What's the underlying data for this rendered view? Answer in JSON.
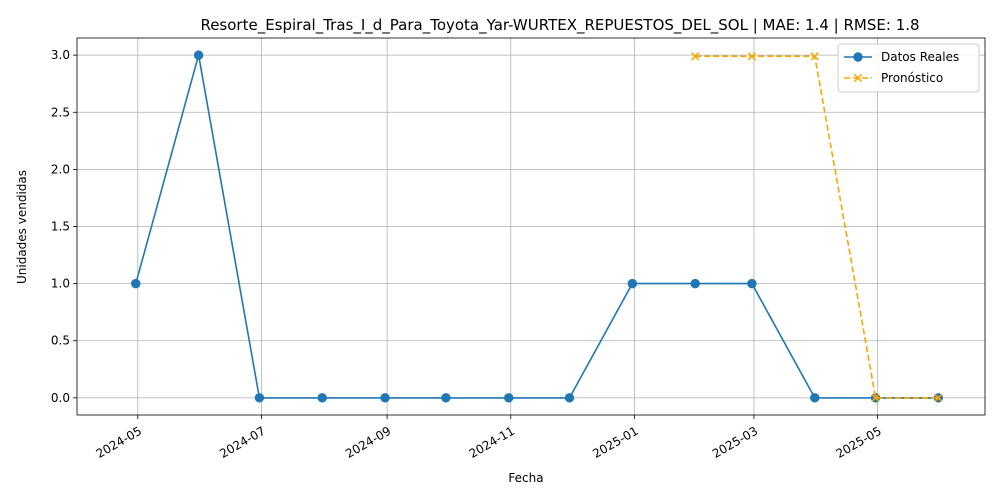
{
  "chart_data": {
    "type": "line",
    "title": "Resorte_Espiral_Tras_I_d_Para_Toyota_Yar-WURTEX_REPUESTOS_DEL_SOL | MAE: 1.4 | RMSE: 1.8",
    "xlabel": "Fecha",
    "ylabel": "Unidades vendidas",
    "xlim": [
      "2024-04-01",
      "2025-06-23"
    ],
    "ylim": [
      -0.15,
      3.15
    ],
    "x_ticks": [
      "2024-05",
      "2024-07",
      "2024-09",
      "2024-11",
      "2025-01",
      "2025-03",
      "2025-05"
    ],
    "y_ticks": [
      "0.0",
      "0.5",
      "1.0",
      "1.5",
      "2.0",
      "2.5",
      "3.0"
    ],
    "grid": true,
    "legend_position": "top-right",
    "series": [
      {
        "name": "Datos Reales",
        "color": "#1f77b4",
        "marker": "circle",
        "line_style": "solid",
        "points": [
          {
            "x": "2024-04-30",
            "y": 1
          },
          {
            "x": "2024-05-31",
            "y": 3
          },
          {
            "x": "2024-06-30",
            "y": 0
          },
          {
            "x": "2024-07-31",
            "y": 0
          },
          {
            "x": "2024-08-31",
            "y": 0
          },
          {
            "x": "2024-09-30",
            "y": 0
          },
          {
            "x": "2024-10-31",
            "y": 0
          },
          {
            "x": "2024-11-30",
            "y": 0
          },
          {
            "x": "2024-12-31",
            "y": 1
          },
          {
            "x": "2025-01-31",
            "y": 1
          },
          {
            "x": "2025-02-28",
            "y": 1
          },
          {
            "x": "2025-03-31",
            "y": 0
          },
          {
            "x": "2025-04-30",
            "y": 0
          },
          {
            "x": "2025-05-31",
            "y": 0
          }
        ]
      },
      {
        "name": "Pronóstico",
        "color": "#ffa500",
        "marker": "x",
        "line_style": "dashed",
        "points": [
          {
            "x": "2025-01-31",
            "y": 2.99
          },
          {
            "x": "2025-02-28",
            "y": 2.99
          },
          {
            "x": "2025-03-31",
            "y": 2.99
          },
          {
            "x": "2025-04-30",
            "y": 0
          },
          {
            "x": "2025-05-31",
            "y": 0
          }
        ]
      }
    ]
  }
}
